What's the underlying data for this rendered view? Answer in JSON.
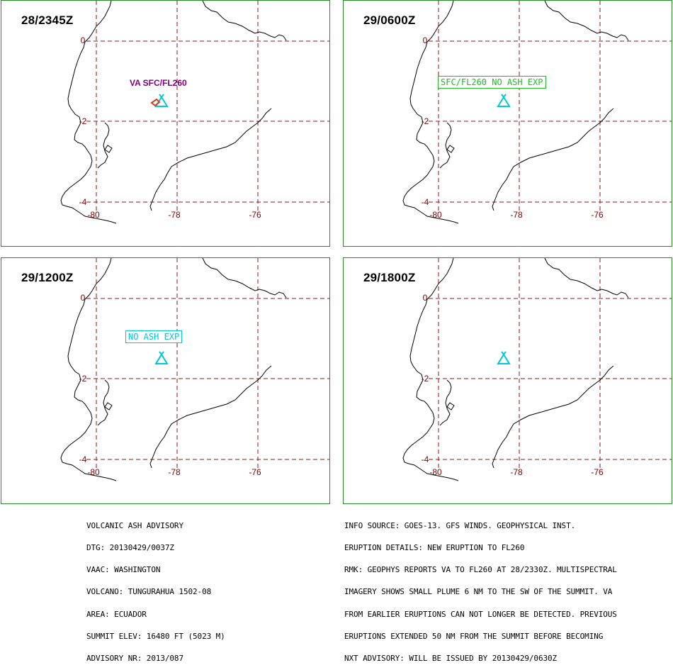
{
  "panels": [
    {
      "id": "p1",
      "time": "28/2345Z",
      "forecast": "VA SFC/FL260",
      "style": "plain",
      "color": "#800080",
      "plume": true
    },
    {
      "id": "p2",
      "time": "29/0600Z",
      "forecast": "SFC/FL260 NO ASH EXP",
      "style": "box",
      "color": "#22bb22",
      "plume": false
    },
    {
      "id": "p3",
      "time": "29/1200Z",
      "forecast": "NO ASH EXP",
      "style": "box",
      "color": "#00c8d8",
      "plume": false
    },
    {
      "id": "p4",
      "time": "29/1800Z",
      "forecast": "",
      "style": "none",
      "color": "#00c8d8",
      "plume": false
    }
  ],
  "axes": {
    "lat_labels": [
      "0",
      "-2",
      "-4"
    ],
    "lon_labels": [
      "-80",
      "-78",
      "-76"
    ]
  },
  "colors": {
    "grid": "#8b1a1a",
    "coast": "#000000",
    "volcano": "#00c8d8",
    "plume": "#d04020",
    "frame": "#2a8a2a"
  },
  "icons": {
    "volcano": "volcano-triangle-icon"
  },
  "advisory_left": [
    "VOLCANIC ASH ADVISORY",
    "DTG: 20130429/0037Z",
    "VAAC: WASHINGTON",
    "VOLCANO: TUNGURAHUA 1502-08",
    "AREA: ECUADOR",
    "SUMMIT ELEV: 16480 FT (5023 M)",
    "ADVISORY NR: 2013/087"
  ],
  "advisory_right": [
    "INFO SOURCE: GOES-13. GFS WINDS. GEOPHYSICAL INST.",
    "ERUPTION DETAILS: NEW ERUPTION TO FL260",
    "RMK: GEOPHYS REPORTS VA TO FL260 AT 28/2330Z. MULTISPECTRAL",
    "IMAGERY SHOWS SMALL PLUME 6 NM TO THE SW OF THE SUMMIT. VA",
    "FROM EARLIER ERUPTIONS CAN NOT LONGER BE DETECTED. PREVIOUS",
    "ERUPTIONS EXTENDED 50 NM FROM THE SUMMIT BEFORE BECOMING",
    "NXT ADVISORY: WILL BE ISSUED BY 20130429/0630Z"
  ]
}
